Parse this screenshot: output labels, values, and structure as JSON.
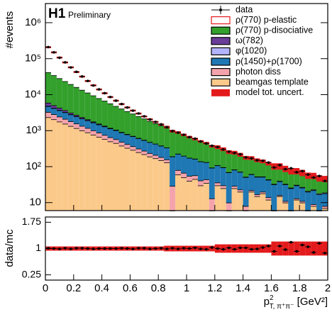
{
  "chart_data": {
    "type": "histogram",
    "annotation": "H1",
    "subtitle": "Preliminary",
    "ylabel": "#events",
    "xlabel": {
      "base": "p",
      "sup": "2",
      "sub": "T, π⁺π⁻",
      "unit": " [GeV²]"
    },
    "xlim": [
      0,
      2
    ],
    "xticks": [
      0,
      0.2,
      0.4,
      0.6,
      0.8,
      1,
      1.2,
      1.4,
      1.6,
      1.8,
      2
    ],
    "ylim": [
      6,
      3400000
    ],
    "log_scale": true,
    "yticks": [
      10,
      {
        "value": 100,
        "label": "10²"
      },
      {
        "value": 1000,
        "label": "10³"
      },
      {
        "value": 10000,
        "label": "10⁴"
      },
      {
        "value": 100000,
        "label": "10⁵"
      },
      {
        "value": 1000000,
        "label": "10⁶"
      }
    ],
    "legend": "upper right",
    "bins": [
      0,
      0.04,
      0.08,
      0.12,
      0.16,
      0.2,
      0.24,
      0.28,
      0.32,
      0.36,
      0.4,
      0.44,
      0.48,
      0.52,
      0.56,
      0.6,
      0.64,
      0.68,
      0.72,
      0.76,
      0.8,
      0.84,
      0.88,
      0.92,
      0.96,
      1,
      1.04,
      1.08,
      1.12,
      1.16,
      1.2,
      1.24,
      1.28,
      1.32,
      1.36,
      1.4,
      1.44,
      1.48,
      1.52,
      1.56,
      1.6,
      1.64,
      1.68,
      1.72,
      1.76,
      1.8,
      1.84,
      1.88,
      1.92,
      1.96,
      2
    ],
    "series": [
      {
        "name": "beamgas template",
        "color": "#fbc98a",
        "edge": "#000",
        "values": [
          2350,
          2060,
          1780,
          1550,
          1340,
          1170,
          1010,
          890,
          770,
          670,
          580,
          500,
          450,
          380,
          330,
          290,
          250,
          220,
          190,
          170,
          150,
          130,
          5,
          60,
          50,
          40,
          45,
          30,
          35,
          5,
          30,
          25,
          5,
          25,
          20,
          5,
          20,
          15,
          18,
          12,
          5,
          15,
          10,
          5,
          12,
          10,
          5,
          8,
          5,
          7
        ]
      },
      {
        "name": "photon diss",
        "color": "#f4a3ac",
        "edge": "#000",
        "values": [
          920,
          780,
          660,
          560,
          470,
          400,
          340,
          290,
          240,
          205,
          175,
          150,
          126,
          107,
          90,
          76,
          65,
          55,
          47,
          40,
          33,
          28,
          24,
          20,
          17,
          15,
          12,
          11,
          9,
          8,
          6,
          5,
          5,
          4,
          3,
          3,
          2,
          2,
          2,
          2,
          1,
          1,
          1,
          1,
          1,
          1,
          1,
          1,
          1,
          1
        ]
      },
      {
        "name": "ρ(1450)+ρ(1700)",
        "color": "#1f78b4",
        "edge": "#000",
        "values": [
          1510,
          1360,
          1230,
          1110,
          1000,
          910,
          820,
          740,
          670,
          605,
          547,
          494,
          447,
          404,
          365,
          330,
          298,
          269,
          243,
          220,
          199,
          179,
          162,
          147,
          132,
          120,
          108,
          98,
          88,
          80,
          72,
          65,
          59,
          53,
          48,
          43,
          39,
          35,
          32,
          29,
          26,
          23,
          21,
          19,
          17,
          15,
          14,
          13,
          11,
          10
        ]
      },
      {
        "name": "φ(1020)",
        "color": "#b3b3ff",
        "edge": "#000",
        "values": [
          91,
          76,
          63,
          52,
          44,
          36,
          30,
          25,
          21,
          17,
          14,
          12,
          10,
          8,
          7,
          6,
          5,
          4,
          3,
          3,
          2,
          2,
          2,
          1,
          1,
          1,
          1,
          1,
          1,
          1,
          1,
          1,
          1,
          1,
          1,
          1,
          1,
          1,
          1,
          1,
          1,
          1,
          1,
          1,
          1,
          1,
          1,
          1,
          1,
          1
        ]
      },
      {
        "name": "ω(782)",
        "color": "#6a3d9a",
        "edge": "#000",
        "values": [
          1070,
          780,
          560,
          410,
          295,
          215,
          155,
          110,
          80,
          60,
          43,
          31,
          22,
          16,
          12,
          8,
          6,
          4,
          0,
          0,
          0,
          0,
          0,
          0,
          0,
          0,
          0,
          0,
          0,
          0,
          0,
          0,
          0,
          0,
          0,
          0,
          0,
          0,
          0,
          0,
          0,
          0,
          0,
          0,
          0,
          0,
          0,
          0,
          0,
          0
        ]
      },
      {
        "name": "ρ(770) p-disociative",
        "color": "#33a02c",
        "edge": "#000",
        "values": [
          36000,
          29400,
          24200,
          19900,
          16400,
          13500,
          11200,
          9300,
          7700,
          6400,
          5400,
          4500,
          3760,
          3160,
          2660,
          2250,
          1900,
          1610,
          1370,
          1165,
          995,
          850,
          730,
          627,
          540,
          466,
          403,
          349,
          303,
          264,
          230,
          201,
          177,
          155,
          137,
          120,
          107,
          94,
          84,
          75,
          67,
          60,
          53,
          48,
          43,
          39,
          35,
          32,
          29,
          26
        ]
      },
      {
        "name": "ρ(770) p-elastic",
        "color": "#ffffff",
        "edge": "#e31a1c",
        "values": [
          166000,
          115000,
          79000,
          55000,
          38000,
          26300,
          18200,
          12600,
          8700,
          6000,
          4200,
          2900,
          2000,
          1380,
          950,
          660,
          460,
          316,
          220,
          150,
          105,
          72,
          50,
          35,
          24,
          21,
          18,
          16,
          14,
          12,
          10,
          9,
          8,
          7,
          6,
          5,
          5,
          4,
          4,
          3,
          3,
          3,
          2,
          2,
          2,
          2,
          1,
          1,
          1,
          1
        ]
      }
    ],
    "data": {
      "name": "data",
      "color": "#000000",
      "values": [
        210000,
        150000,
        106000,
        79000,
        57000,
        43000,
        32000,
        24000,
        18000,
        14000,
        11000,
        8600,
        6800,
        5500,
        4400,
        3600,
        3000,
        2500,
        2050,
        1750,
        1500,
        1250,
        980,
        880,
        770,
        660,
        600,
        500,
        440,
        380,
        350,
        300,
        260,
        240,
        220,
        180,
        170,
        150,
        145,
        130,
        95,
        110,
        85,
        90,
        70,
        75,
        60,
        50,
        55,
        40
      ]
    },
    "model_uncert": {
      "name": "model tot. uncert.",
      "color": "#e31a1c",
      "values": [
        0.06,
        0.06,
        0.06,
        0.06,
        0.06,
        0.06,
        0.06,
        0.06,
        0.06,
        0.06,
        0.06,
        0.06,
        0.06,
        0.06,
        0.06,
        0.06,
        0.06,
        0.06,
        0.06,
        0.06,
        0.06,
        0.08,
        0.08,
        0.08,
        0.08,
        0.08,
        0.08,
        0.08,
        0.08,
        0.08,
        0.12,
        0.12,
        0.12,
        0.12,
        0.12,
        0.12,
        0.12,
        0.12,
        0.12,
        0.12,
        0.2,
        0.2,
        0.2,
        0.2,
        0.2,
        0.2,
        0.2,
        0.2,
        0.2,
        0.2
      ]
    },
    "ratio": {
      "ylabel": "data/mc",
      "ylim": [
        0.1,
        1.9
      ],
      "yticks": [
        0.25,
        1,
        1.75
      ],
      "values": [
        1.01,
        1,
        0.99,
        1.01,
        0.99,
        1.01,
        1.01,
        1,
        0.99,
        1,
        1,
        1,
        1,
        1.01,
        1,
        0.99,
        1.01,
        1.01,
        0.99,
        1,
        1.01,
        0.99,
        1.01,
        0.99,
        1.01,
        1,
        1.02,
        0.99,
        0.98,
        1.03,
        1,
        0.98,
        1.02,
        0.98,
        1.02,
        1.02,
        0.98,
        0.99,
        1.03,
        1.07,
        0.92,
        1.07,
        0.97,
        1.18,
        0.92,
        1.1,
        1.05,
        0.89,
        1.15,
        0.87
      ]
    }
  }
}
